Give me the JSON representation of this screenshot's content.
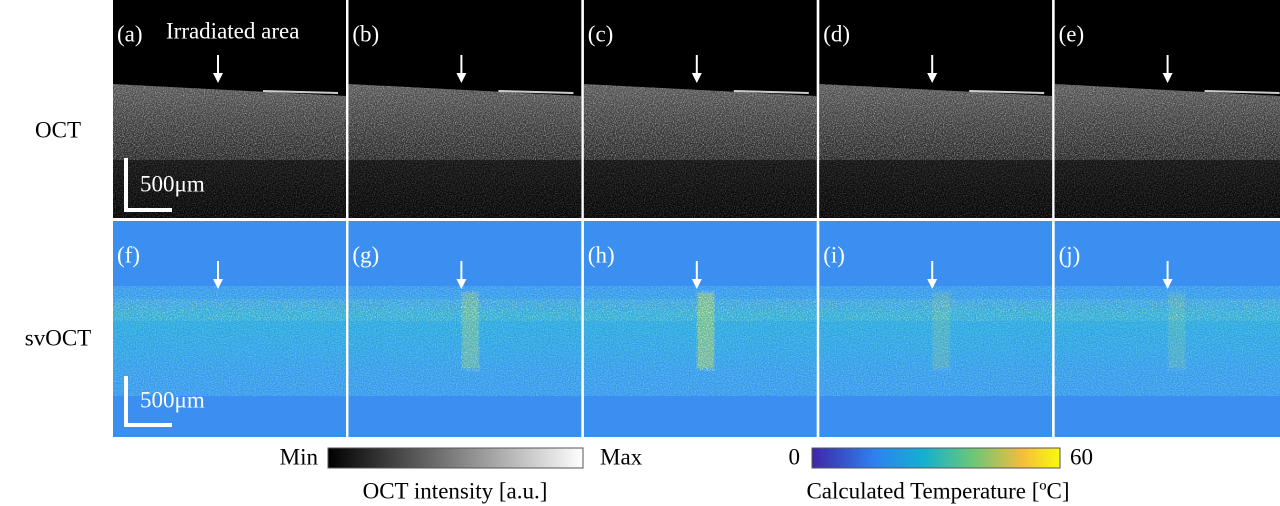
{
  "row_labels": [
    "OCT",
    "svOCT"
  ],
  "panel_labels": [
    "(a)",
    "(b)",
    "(c)",
    "(d)",
    "(e)",
    "(f)",
    "(g)",
    "(h)",
    "(i)",
    "(j)"
  ],
  "annotation": "Irradiated area",
  "scale_bar": "500μm",
  "colorbars": [
    {
      "min_label": "Min",
      "max_label": "Max",
      "title": "OCT intensity [a.u.]"
    },
    {
      "min_label": 0,
      "max_label": 60,
      "title": "Calculated Temperature [ºC]"
    }
  ]
}
